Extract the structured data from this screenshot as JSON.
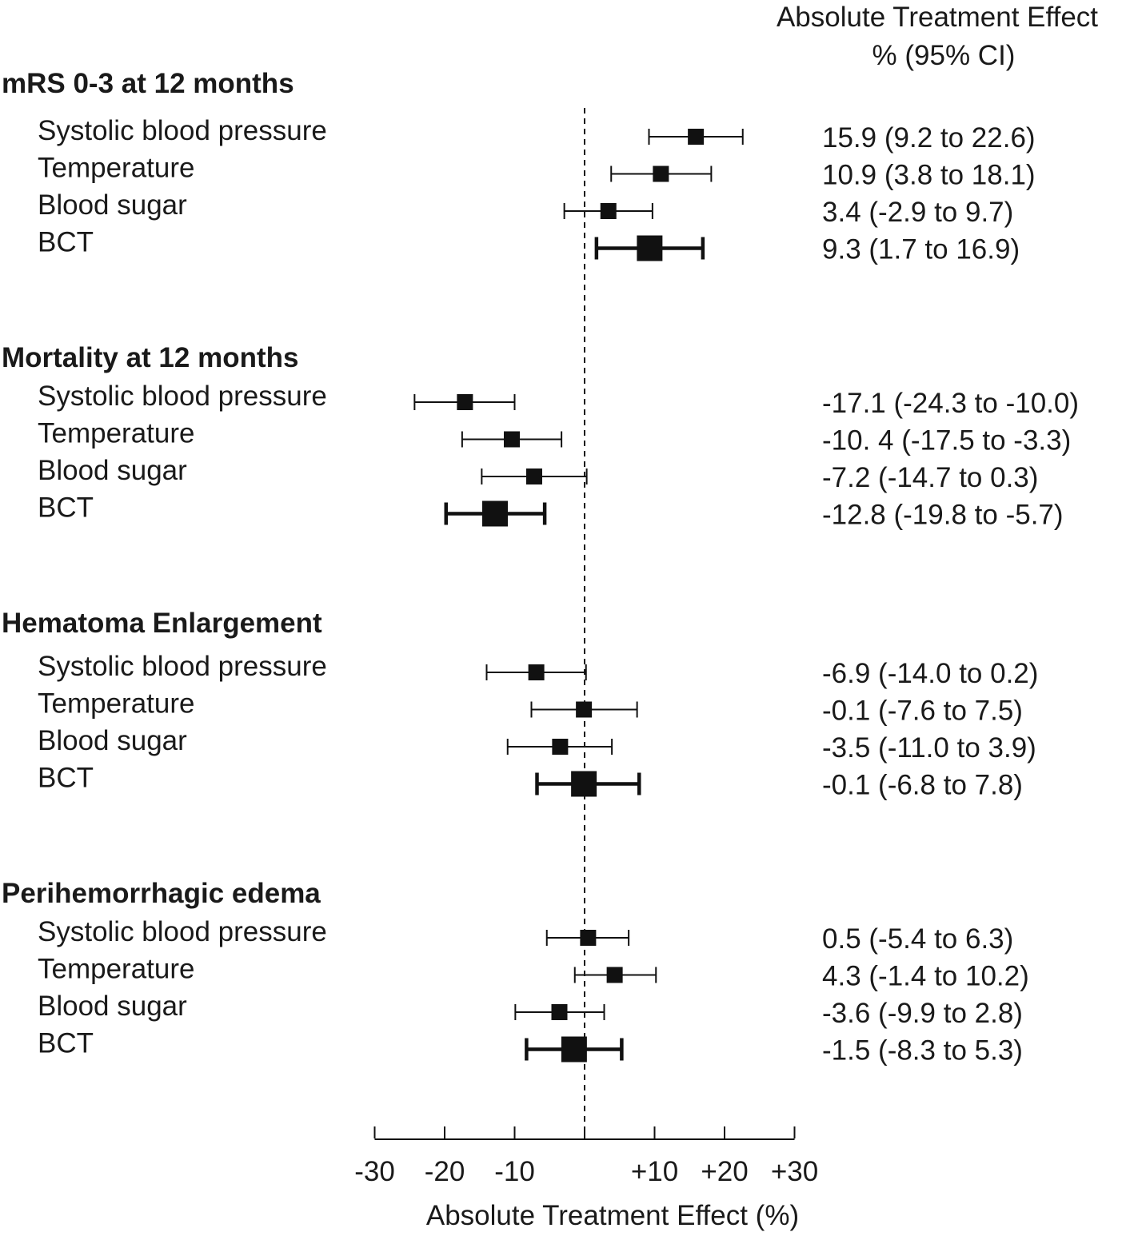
{
  "chart_data": {
    "type": "forest",
    "header": [
      "Absolute Treatment Effect",
      "% (95% CI)"
    ],
    "xlabel": "Absolute Treatment Effect (%)",
    "xlim": [
      -30,
      30
    ],
    "ticks": [
      -30,
      -20,
      -10,
      0,
      10,
      20,
      30
    ],
    "tick_labels": [
      "-30",
      "-20",
      "-10",
      "",
      "+10",
      "+20",
      "+30"
    ],
    "reference_line": 0,
    "groups": [
      {
        "title": "mRS 0-3 at 12 months",
        "rows": [
          {
            "label": "Systolic blood pressure",
            "estimate": 15.9,
            "lower": 9.2,
            "upper": 22.6,
            "text": "15.9 (9.2 to 22.6)",
            "summary": false
          },
          {
            "label": "Temperature",
            "estimate": 10.9,
            "lower": 3.8,
            "upper": 18.1,
            "text": "10.9 (3.8 to 18.1)",
            "summary": false
          },
          {
            "label": "Blood sugar",
            "estimate": 3.4,
            "lower": -2.9,
            "upper": 9.7,
            "text": "3.4 (-2.9 to 9.7)",
            "summary": false
          },
          {
            "label": "BCT",
            "estimate": 9.3,
            "lower": 1.7,
            "upper": 16.9,
            "text": "9.3 (1.7 to 16.9)",
            "summary": true
          }
        ]
      },
      {
        "title": "Mortality at 12 months",
        "rows": [
          {
            "label": "Systolic blood pressure",
            "estimate": -17.1,
            "lower": -24.3,
            "upper": -10.0,
            "text": "-17.1 (-24.3 to -10.0)",
            "summary": false
          },
          {
            "label": "Temperature",
            "estimate": -10.4,
            "lower": -17.5,
            "upper": -3.3,
            "text": "-10. 4 (-17.5 to -3.3)",
            "summary": false
          },
          {
            "label": "Blood sugar",
            "estimate": -7.2,
            "lower": -14.7,
            "upper": 0.3,
            "text": "-7.2 (-14.7 to 0.3)",
            "summary": false
          },
          {
            "label": "BCT",
            "estimate": -12.8,
            "lower": -19.8,
            "upper": -5.7,
            "text": "-12.8 (-19.8 to -5.7)",
            "summary": true
          }
        ]
      },
      {
        "title": "Hematoma Enlargement",
        "rows": [
          {
            "label": "Systolic blood pressure",
            "estimate": -6.9,
            "lower": -14.0,
            "upper": 0.2,
            "text": "-6.9 (-14.0 to 0.2)",
            "summary": false
          },
          {
            "label": "Temperature",
            "estimate": -0.1,
            "lower": -7.6,
            "upper": 7.5,
            "text": "-0.1 (-7.6 to 7.5)",
            "summary": false
          },
          {
            "label": "Blood sugar",
            "estimate": -3.5,
            "lower": -11.0,
            "upper": 3.9,
            "text": "-3.5 (-11.0 to 3.9)",
            "summary": false
          },
          {
            "label": "BCT",
            "estimate": -0.1,
            "lower": -6.8,
            "upper": 7.8,
            "text": "-0.1 (-6.8 to 7.8)",
            "summary": true
          }
        ]
      },
      {
        "title": "Perihemorrhagic edema",
        "rows": [
          {
            "label": "Systolic blood pressure",
            "estimate": 0.5,
            "lower": -5.4,
            "upper": 6.3,
            "text": "0.5 (-5.4 to 6.3)",
            "summary": false
          },
          {
            "label": "Temperature",
            "estimate": 4.3,
            "lower": -1.4,
            "upper": 10.2,
            "text": "4.3 (-1.4 to 10.2)",
            "summary": false
          },
          {
            "label": "Blood sugar",
            "estimate": -3.6,
            "lower": -9.9,
            "upper": 2.8,
            "text": "-3.6 (-9.9 to 2.8)",
            "summary": false
          },
          {
            "label": "BCT",
            "estimate": -1.5,
            "lower": -8.3,
            "upper": 5.3,
            "text": "-1.5 (-8.3 to 5.3)",
            "summary": true
          }
        ]
      }
    ]
  }
}
